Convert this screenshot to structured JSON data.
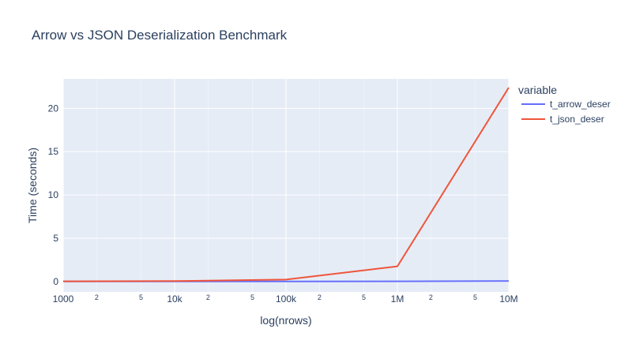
{
  "chart_data": {
    "type": "line",
    "title": "Arrow vs JSON Deserialization Benchmark",
    "xlabel": "log(nrows)",
    "ylabel": "Time (seconds)",
    "x_scale": "log",
    "x": [
      1000,
      10000,
      100000,
      1000000,
      10000000
    ],
    "xlim": [
      1000,
      10000000
    ],
    "ylim": [
      -1.2,
      23.4
    ],
    "x_major_ticks": [
      {
        "value": 1000,
        "label": "1000"
      },
      {
        "value": 10000,
        "label": "10k"
      },
      {
        "value": 100000,
        "label": "100k"
      },
      {
        "value": 1000000,
        "label": "1M"
      },
      {
        "value": 10000000,
        "label": "10M"
      }
    ],
    "x_minor_ticks": [
      {
        "value": 2000,
        "label": "2"
      },
      {
        "value": 5000,
        "label": "5"
      },
      {
        "value": 20000,
        "label": "2"
      },
      {
        "value": 50000,
        "label": "5"
      },
      {
        "value": 200000,
        "label": "2"
      },
      {
        "value": 500000,
        "label": "5"
      },
      {
        "value": 2000000,
        "label": "2"
      },
      {
        "value": 5000000,
        "label": "5"
      }
    ],
    "y_ticks": [
      {
        "value": 0,
        "label": "0"
      },
      {
        "value": 5,
        "label": "5"
      },
      {
        "value": 10,
        "label": "10"
      },
      {
        "value": 15,
        "label": "15"
      },
      {
        "value": 20,
        "label": "20"
      }
    ],
    "grid": true,
    "legend": {
      "title": "variable",
      "placement": "right"
    },
    "series": [
      {
        "name": "t_arrow_deser",
        "color": "#636efa",
        "values": [
          0.002,
          0.004,
          0.01,
          0.02,
          0.05
        ]
      },
      {
        "name": "t_json_deser",
        "color": "#ef553b",
        "values": [
          0.02,
          0.05,
          0.22,
          1.75,
          22.4
        ]
      }
    ]
  }
}
